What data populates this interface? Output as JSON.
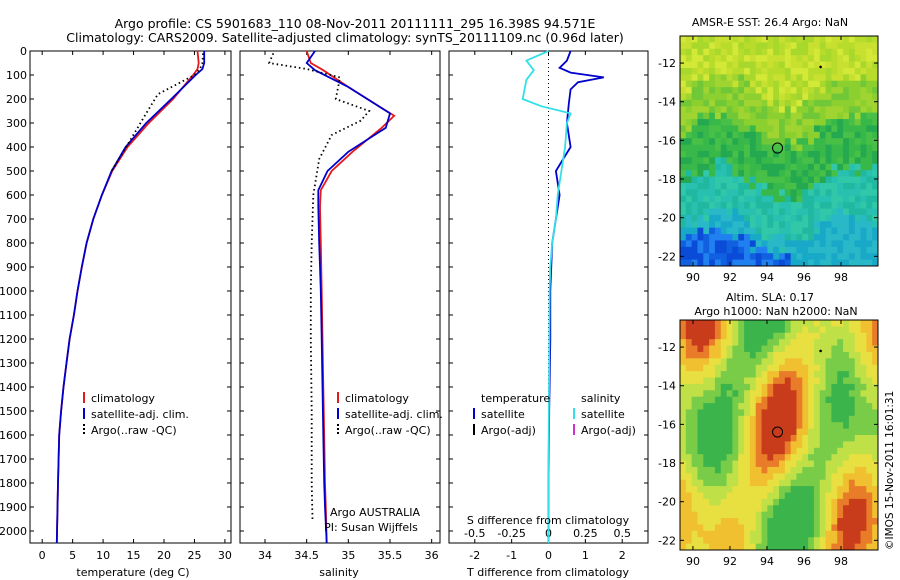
{
  "header": {
    "line1": "Argo profile: CS 5901683_110 08-Nov-2011 20111111_295 16.398S 94.571E",
    "line2": "Climatology: CARS2009. Satellite-adjusted climatology: synTS_20111109.nc (0.96d later)"
  },
  "colors": {
    "climatology": "#e41a1c",
    "satellite": "#0000cc",
    "argo": "#000000",
    "sal_satellite": "#33e0e8",
    "sal_argo": "#cc33cc"
  },
  "chart_data": [
    {
      "type": "line",
      "id": "temperature",
      "xlabel": "temperature (deg C)",
      "ylabel": "",
      "xlim": [
        -2,
        31
      ],
      "ylim": [
        2050,
        0
      ],
      "xticks": [
        0,
        5,
        10,
        15,
        20,
        25,
        30
      ],
      "yticks": [
        0,
        100,
        200,
        300,
        400,
        500,
        600,
        700,
        800,
        900,
        1000,
        1100,
        1200,
        1300,
        1400,
        1500,
        1600,
        1700,
        1800,
        1900,
        2000
      ],
      "legend": [
        "climatology",
        "satellite-adj. clim.",
        "Argo(..raw -QC)"
      ],
      "series": [
        {
          "name": "climatology",
          "style": "solid",
          "x": [
            25.5,
            25.7,
            25.5,
            24.8,
            21.5,
            17.5,
            14.0,
            11.5,
            9.8,
            8.4,
            7.3,
            6.5,
            5.8,
            5.2,
            4.5,
            4.0,
            3.5,
            3.1,
            2.8,
            2.6,
            2.4
          ],
          "y": [
            0,
            50,
            75,
            100,
            200,
            300,
            400,
            500,
            600,
            700,
            800,
            900,
            1000,
            1100,
            1200,
            1300,
            1400,
            1500,
            1600,
            1800,
            2050
          ]
        },
        {
          "name": "satellite-adj. clim.",
          "style": "solid",
          "x": [
            26.6,
            26.6,
            26.3,
            25.2,
            21.2,
            17.1,
            13.7,
            11.4,
            9.8,
            8.4,
            7.3,
            6.5,
            5.8,
            5.2,
            4.5,
            4.0,
            3.5,
            3.1,
            2.8,
            2.6,
            2.4
          ],
          "y": [
            0,
            50,
            75,
            100,
            200,
            300,
            400,
            500,
            600,
            700,
            800,
            900,
            1000,
            1100,
            1200,
            1300,
            1400,
            1500,
            1600,
            1800,
            2050
          ]
        },
        {
          "name": "Argo(..raw -QC)",
          "style": "dotted",
          "x": [
            26.4,
            26.3,
            25.9,
            25.0,
            19.0,
            17.3,
            13.8,
            11.4
          ],
          "y": [
            10,
            50,
            75,
            100,
            180,
            250,
            400,
            500
          ]
        }
      ]
    },
    {
      "type": "line",
      "id": "salinity",
      "xlabel": "salinity",
      "ylabel": "",
      "xlim": [
        33.7,
        36.1
      ],
      "ylim": [
        2050,
        0
      ],
      "xticks": [
        34,
        34.5,
        35,
        35.5,
        36
      ],
      "legend": [
        "climatology",
        "satellite-adj. clim.",
        "Argo(..raw -QC)"
      ],
      "annotations": [
        "Argo AUSTRALIA",
        "PI: Susan Wijffels"
      ],
      "series": [
        {
          "name": "climatology",
          "style": "solid",
          "x": [
            34.5,
            34.55,
            34.7,
            35.0,
            35.55,
            35.4,
            35.05,
            34.8,
            34.67,
            34.66,
            34.67,
            34.68,
            34.69,
            34.7,
            34.71,
            34.72,
            34.73,
            34.74
          ],
          "y": [
            0,
            50,
            80,
            150,
            270,
            320,
            420,
            500,
            580,
            650,
            800,
            1000,
            1200,
            1400,
            1600,
            1800,
            1900,
            2050
          ]
        },
        {
          "name": "satellite-adj. clim.",
          "style": "solid",
          "x": [
            34.6,
            34.5,
            34.6,
            35.0,
            35.5,
            35.45,
            35.0,
            34.75,
            34.64,
            34.64,
            34.65,
            34.67,
            34.68,
            34.69,
            34.7,
            34.71,
            34.72,
            34.74
          ],
          "y": [
            0,
            50,
            80,
            150,
            260,
            320,
            420,
            500,
            580,
            650,
            800,
            1000,
            1200,
            1400,
            1600,
            1800,
            1900,
            2050
          ]
        },
        {
          "name": "Argo(..raw -QC)",
          "style": "dotted",
          "x": [
            34.1,
            34.05,
            34.5,
            34.9,
            34.85,
            35.25,
            35.15,
            34.8,
            34.65,
            34.58,
            34.56,
            34.55,
            34.55,
            34.56,
            34.56,
            34.57
          ],
          "y": [
            10,
            50,
            75,
            110,
            200,
            250,
            290,
            350,
            450,
            600,
            800,
            1000,
            1200,
            1500,
            1800,
            1950
          ]
        }
      ]
    },
    {
      "type": "line",
      "id": "difference",
      "xlabel": "T difference from climatology",
      "xlabel_top": "S difference from climatology",
      "xlim": [
        -2.7,
        2.7
      ],
      "ylim": [
        2050,
        0
      ],
      "xticks_T": [
        -2,
        -1,
        0,
        1,
        2
      ],
      "xticks_S": [
        "-0.5",
        "-0.25",
        "0",
        "0.25",
        "0.5"
      ],
      "legend_temperature_title": "temperature",
      "legend_salinity_title": "salinity",
      "legend": {
        "temperature": [
          "satellite",
          "Argo(-adj)"
        ],
        "salinity": [
          "satellite",
          "Argo(-adj)"
        ]
      },
      "series": [
        {
          "name": "T satellite",
          "style": "solid",
          "x": [
            0.6,
            0.5,
            0.3,
            0.6,
            1.5,
            0.8,
            0.6,
            0.55,
            0.5,
            0.6,
            0.4,
            0.2,
            0.3,
            0.2,
            0.1,
            0.05,
            0.05,
            0.02,
            0.0,
            0.0
          ],
          "y": [
            0,
            40,
            70,
            90,
            110,
            130,
            160,
            220,
            300,
            400,
            450,
            500,
            600,
            700,
            800,
            1000,
            1200,
            1500,
            1800,
            2050
          ]
        },
        {
          "name": "S satellite",
          "style": "solid",
          "x": [
            0.0,
            -0.6,
            -0.4,
            -0.6,
            -0.7,
            -0.2,
            0.6,
            0.5,
            0.45,
            0.35,
            0.25,
            0.2,
            0.1,
            0.05,
            0.03,
            0.02,
            0.0,
            0.0
          ],
          "y": [
            0,
            40,
            80,
            120,
            200,
            230,
            260,
            300,
            400,
            500,
            600,
            700,
            800,
            900,
            1000,
            1300,
            1700,
            2050
          ]
        }
      ]
    },
    {
      "type": "heatmap",
      "id": "sst-map",
      "title": "AMSR-E SST: 26.4  Argo: NaN",
      "xlim": [
        89.3,
        100
      ],
      "ylim": [
        -22.5,
        -10.6
      ],
      "xticks": [
        90,
        92,
        94,
        96,
        98
      ],
      "yticks": [
        -12,
        -14,
        -16,
        -18,
        -20,
        -22
      ],
      "marker": {
        "lon": 94.571,
        "lat": -16.398
      },
      "point": {
        "lon": 96.9,
        "lat": -12.2
      }
    },
    {
      "type": "heatmap",
      "id": "sla-map",
      "title": "Altim. SLA: 0.17",
      "title2": "Argo h1000: NaN h2000: NaN",
      "xlim": [
        89.3,
        100
      ],
      "ylim": [
        -22.5,
        -10.6
      ],
      "xticks": [
        90,
        92,
        94,
        96,
        98
      ],
      "yticks": [
        -12,
        -14,
        -16,
        -18,
        -20,
        -22
      ],
      "marker": {
        "lon": 94.571,
        "lat": -16.398
      },
      "point": {
        "lon": 96.9,
        "lat": -12.2
      }
    }
  ],
  "side_label": "©IMOS 15-Nov-2011 16:01:31"
}
